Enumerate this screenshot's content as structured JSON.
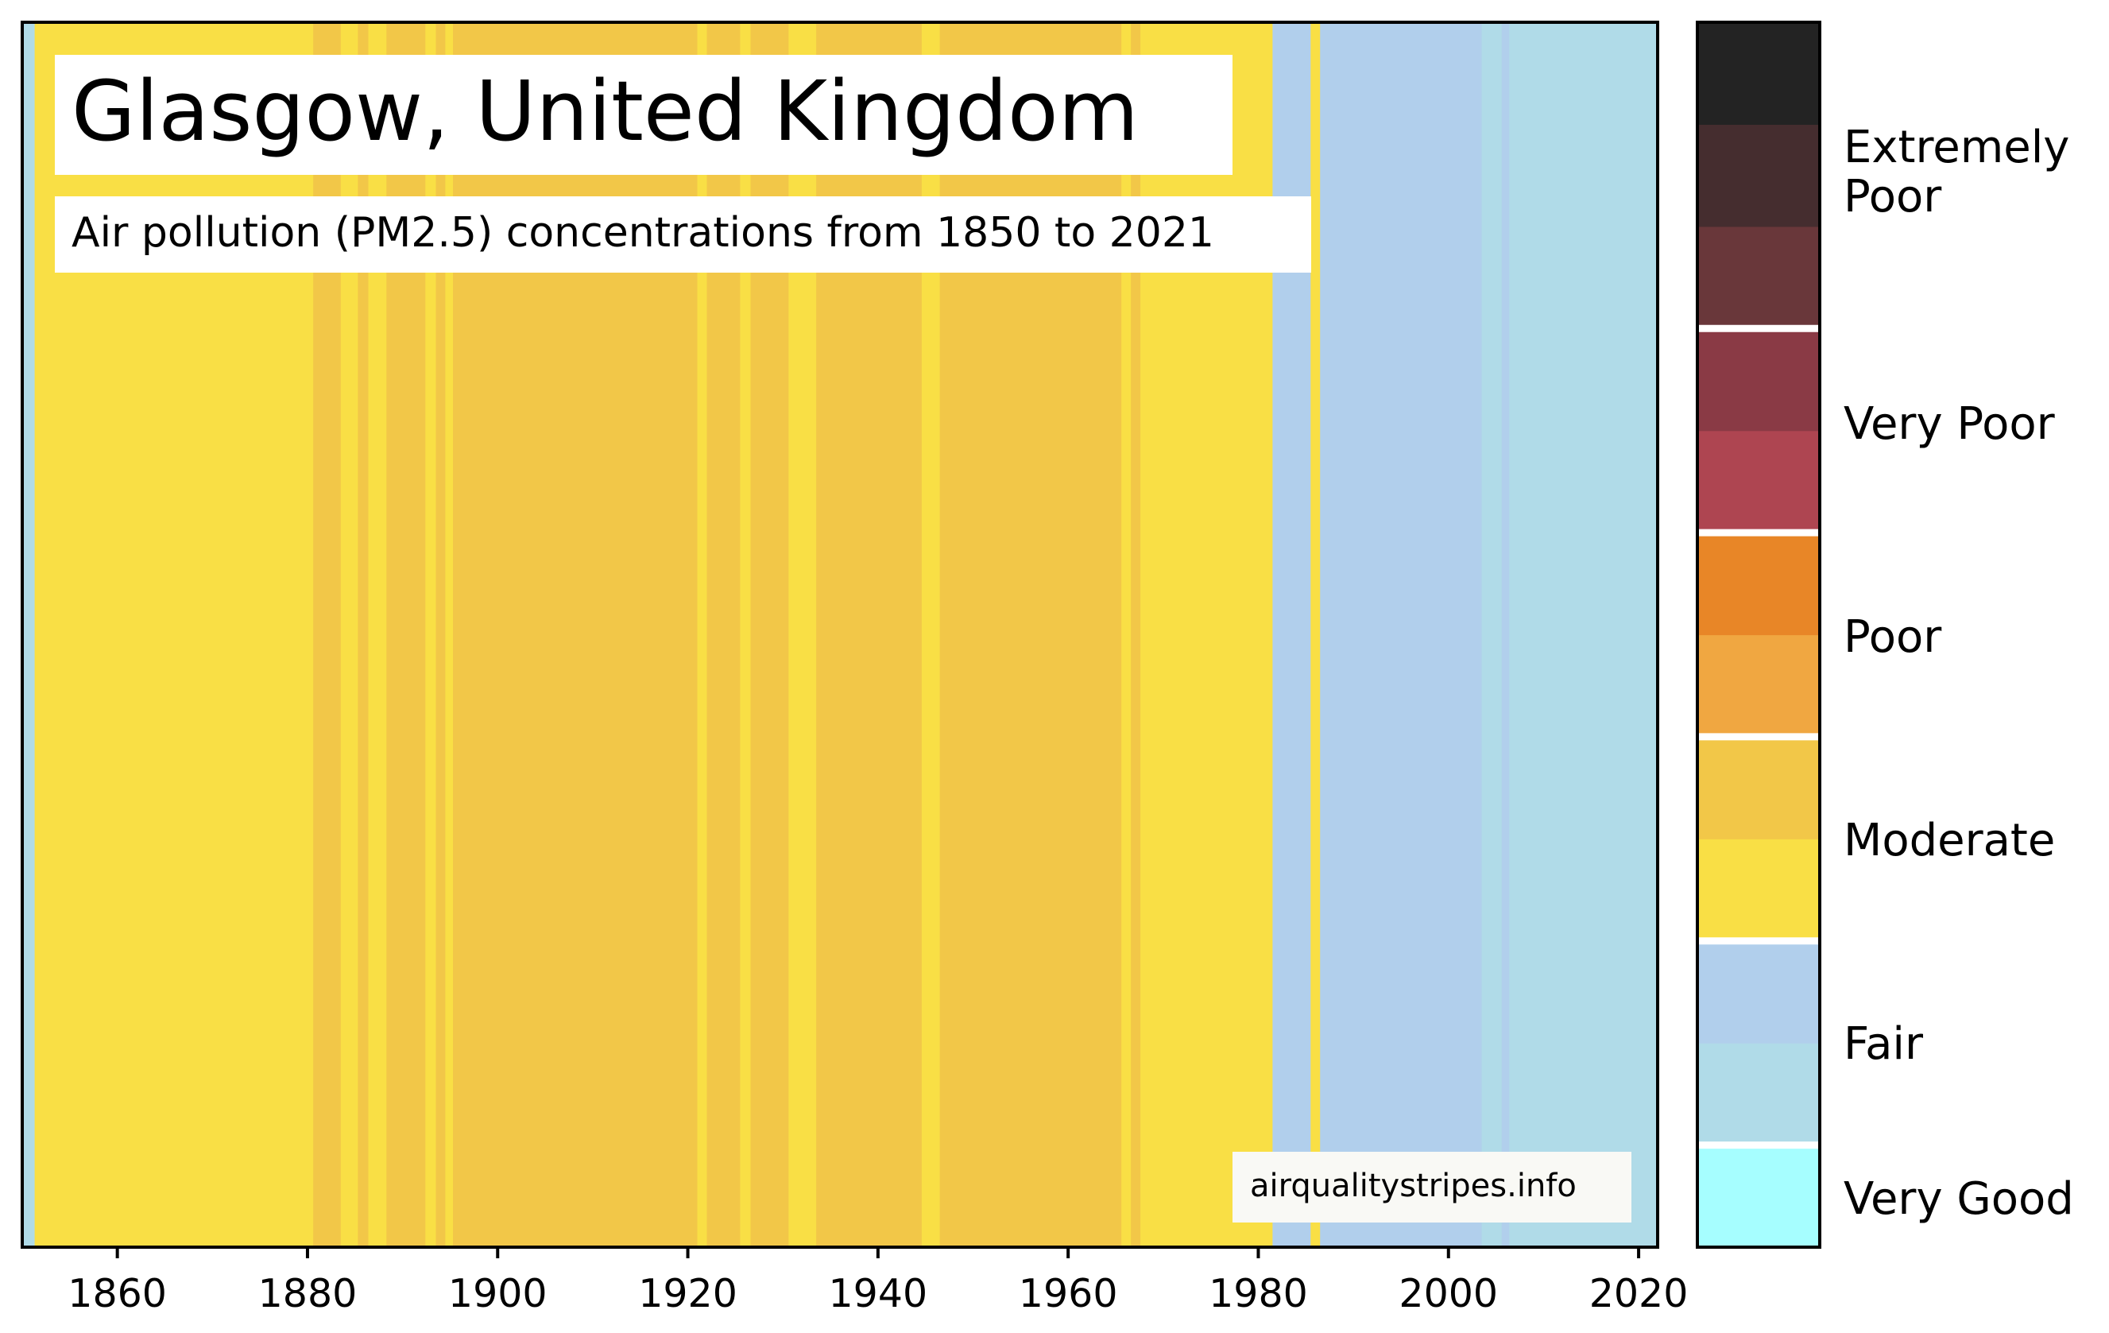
{
  "chart_data": {
    "type": "heatmap",
    "title": "Glasgow, United Kingdom",
    "subtitle": "Air pollution (PM2.5) concentrations from 1850 to 2021",
    "source": "airqualitystripes.info",
    "x_range": [
      1850,
      2022
    ],
    "x_ticks": [
      "1860",
      "1880",
      "1900",
      "1920",
      "1940",
      "1960",
      "1980",
      "2000",
      "2020"
    ],
    "colors": {
      "very_good": "#a6feff",
      "fair_light": "#b0dbe8",
      "fair_dark": "#b1cfec",
      "moderate_light": "#f9df45",
      "moderate_dark": "#f2c748",
      "poor_light": "#f0a741",
      "poor_dark": "#e88627",
      "very_poor_light": "#ae4551",
      "very_poor_dark": "#8a3a45",
      "extremely_poor_1": "#69373a",
      "extremely_poor_2": "#452d2f",
      "extremely_poor_3": "#232323"
    },
    "stripes": [
      {
        "start": 1850,
        "end": 1851.3,
        "category": "fair_light"
      },
      {
        "start": 1851.3,
        "end": 1880.6,
        "category": "moderate_light"
      },
      {
        "start": 1880.6,
        "end": 1883.5,
        "category": "moderate_dark"
      },
      {
        "start": 1883.5,
        "end": 1885.3,
        "category": "moderate_light"
      },
      {
        "start": 1885.3,
        "end": 1886.4,
        "category": "moderate_dark"
      },
      {
        "start": 1886.4,
        "end": 1888.3,
        "category": "moderate_light"
      },
      {
        "start": 1888.3,
        "end": 1892.4,
        "category": "moderate_dark"
      },
      {
        "start": 1892.4,
        "end": 1893.5,
        "category": "moderate_light"
      },
      {
        "start": 1893.5,
        "end": 1894.5,
        "category": "moderate_dark"
      },
      {
        "start": 1894.5,
        "end": 1895.3,
        "category": "moderate_light"
      },
      {
        "start": 1895.3,
        "end": 1921.0,
        "category": "moderate_dark"
      },
      {
        "start": 1921.0,
        "end": 1922.0,
        "category": "moderate_light"
      },
      {
        "start": 1922.0,
        "end": 1925.5,
        "category": "moderate_dark"
      },
      {
        "start": 1925.5,
        "end": 1926.6,
        "category": "moderate_light"
      },
      {
        "start": 1926.6,
        "end": 1930.6,
        "category": "moderate_dark"
      },
      {
        "start": 1930.6,
        "end": 1933.5,
        "category": "moderate_light"
      },
      {
        "start": 1933.5,
        "end": 1944.6,
        "category": "moderate_dark"
      },
      {
        "start": 1944.6,
        "end": 1946.5,
        "category": "moderate_light"
      },
      {
        "start": 1946.5,
        "end": 1965.6,
        "category": "moderate_dark"
      },
      {
        "start": 1965.6,
        "end": 1966.6,
        "category": "moderate_light"
      },
      {
        "start": 1966.6,
        "end": 1967.6,
        "category": "moderate_dark"
      },
      {
        "start": 1967.6,
        "end": 1981.5,
        "category": "moderate_light"
      },
      {
        "start": 1981.5,
        "end": 1985.5,
        "category": "fair_dark"
      },
      {
        "start": 1985.5,
        "end": 1986.5,
        "category": "moderate_light"
      },
      {
        "start": 1986.5,
        "end": 2003.5,
        "category": "fair_dark"
      },
      {
        "start": 2003.5,
        "end": 2005.6,
        "category": "fair_light"
      },
      {
        "start": 2005.6,
        "end": 2006.4,
        "category": "fair_dark"
      },
      {
        "start": 2006.4,
        "end": 2022,
        "category": "fair_light"
      }
    ],
    "colorbar": {
      "segments": [
        "very_good",
        "fair_light",
        "fair_dark",
        "moderate_light",
        "moderate_dark",
        "poor_light",
        "poor_dark",
        "very_poor_light",
        "very_poor_dark",
        "extremely_poor_1",
        "extremely_poor_2",
        "extremely_poor_3"
      ],
      "labels": [
        "Very Good",
        "Fair",
        "Moderate",
        "Poor",
        "Very Poor",
        "Extremely Poor"
      ]
    }
  }
}
